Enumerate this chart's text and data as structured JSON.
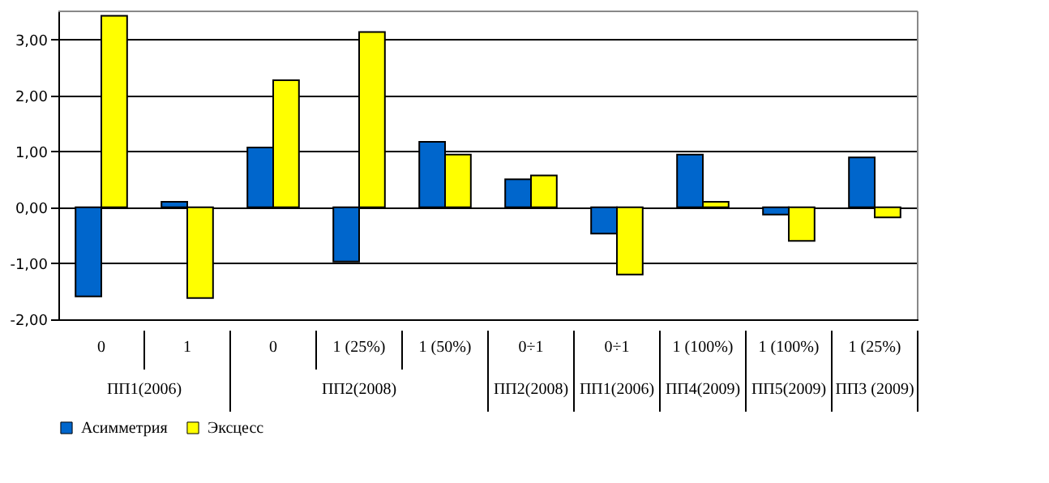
{
  "chart_data": {
    "type": "bar",
    "categories": [
      "0",
      "1",
      "0",
      "1 (25%)",
      "1 (50%)",
      "0÷1",
      "0÷1",
      "1 (100%)",
      "1 (100%)",
      "1 (25%)"
    ],
    "annotations": [
      "ПП1(2006)",
      "ПП2(2008)",
      "ПП2(2008)",
      "ПП1(2006)",
      "ПП4(2009)",
      "ПП5(2009)",
      "ПП3 (2009)"
    ],
    "series": [
      {
        "name": "Асимметрия",
        "color": "#0066cc",
        "values": [
          -1.59,
          0.1,
          1.07,
          -0.97,
          1.17,
          0.5,
          -0.47,
          0.94,
          -0.13,
          0.89
        ]
      },
      {
        "name": "Эксцесс",
        "color": "#ffff00",
        "values": [
          3.42,
          -1.62,
          2.27,
          3.13,
          0.94,
          0.57,
          -1.2,
          0.1,
          -0.6,
          -0.18
        ]
      }
    ],
    "ylim": [
      -2,
      3.5
    ],
    "yticks": [
      {
        "value": -2,
        "label": "-2,00"
      },
      {
        "value": -1,
        "label": "-1,00"
      },
      {
        "value": 0,
        "label": "0,00"
      },
      {
        "value": 1,
        "label": "1,00"
      },
      {
        "value": 2,
        "label": "2,00"
      },
      {
        "value": 3,
        "label": "3,00"
      }
    ],
    "grid": "y",
    "legend": "bottom"
  }
}
